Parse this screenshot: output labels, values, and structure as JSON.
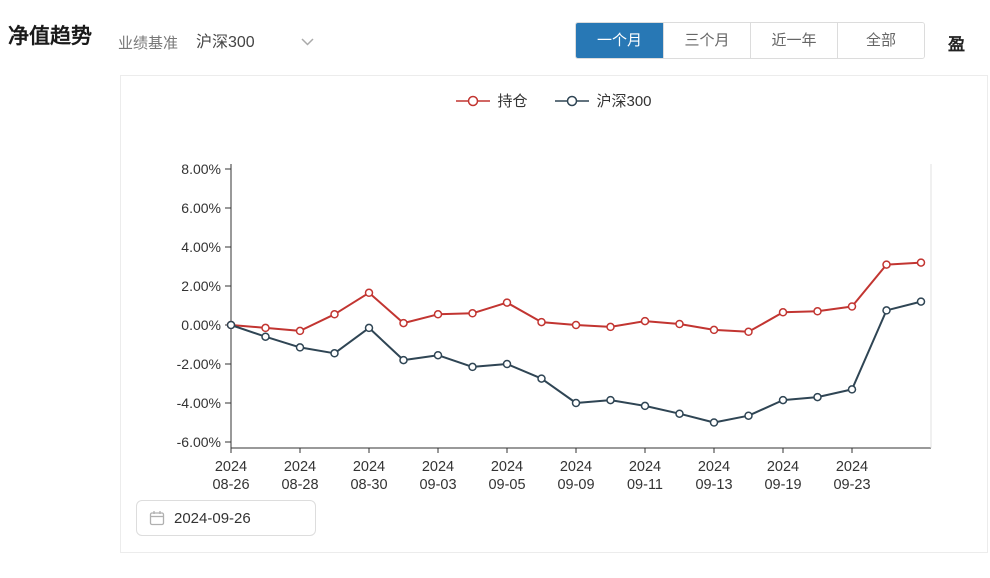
{
  "header": {
    "title": "净值趋势",
    "benchmark_label": "业绩基准",
    "benchmark_value": "沪深300",
    "clipped_right_text": "盈"
  },
  "tabs": [
    {
      "id": "one-month",
      "label": "一个月",
      "active": true
    },
    {
      "id": "three-months",
      "label": "三个月",
      "active": false
    },
    {
      "id": "one-year",
      "label": "近一年",
      "active": false
    },
    {
      "id": "all",
      "label": "全部",
      "active": false
    }
  ],
  "colors": {
    "active_tab": "#2878b5",
    "series_holdings": "#c23531",
    "series_benchmark": "#2f4554",
    "axis": "#333333",
    "plot_border": "#e0e0e0"
  },
  "chart_data": {
    "type": "line",
    "title": "",
    "x": [
      "2024-08-26",
      "2024-08-27",
      "2024-08-28",
      "2024-08-29",
      "2024-08-30",
      "2024-09-02",
      "2024-09-03",
      "2024-09-04",
      "2024-09-05",
      "2024-09-06",
      "2024-09-09",
      "2024-09-10",
      "2024-09-11",
      "2024-09-12",
      "2024-09-13",
      "2024-09-18",
      "2024-09-19",
      "2024-09-20",
      "2024-09-23",
      "2024-09-24",
      "2024-09-25"
    ],
    "x_label_indices": [
      0,
      2,
      4,
      6,
      8,
      10,
      12,
      14,
      16,
      18
    ],
    "yticks": [
      8,
      6,
      4,
      2,
      0,
      -2,
      -4,
      -6
    ],
    "ylim": [
      -6.3,
      8
    ],
    "y_format": "0.00%",
    "grid": false,
    "legend_position": "top",
    "series": [
      {
        "name": "持仓",
        "color": "#c23531",
        "values": [
          0.0,
          -0.15,
          -0.3,
          0.55,
          1.65,
          0.1,
          0.55,
          0.6,
          1.15,
          0.15,
          0.0,
          -0.1,
          0.2,
          0.05,
          -0.25,
          -0.35,
          0.65,
          0.7,
          0.95,
          3.1,
          3.2
        ]
      },
      {
        "name": "沪深300",
        "color": "#2f4554",
        "values": [
          0.0,
          -0.6,
          -1.15,
          -1.45,
          -0.15,
          -1.8,
          -1.55,
          -2.15,
          -2.0,
          -2.75,
          -4.0,
          -3.85,
          -4.15,
          -4.55,
          -5.0,
          -4.65,
          -3.85,
          -3.7,
          -3.3,
          0.75,
          1.2
        ]
      }
    ]
  },
  "date_picker": {
    "value": "2024-09-26"
  }
}
